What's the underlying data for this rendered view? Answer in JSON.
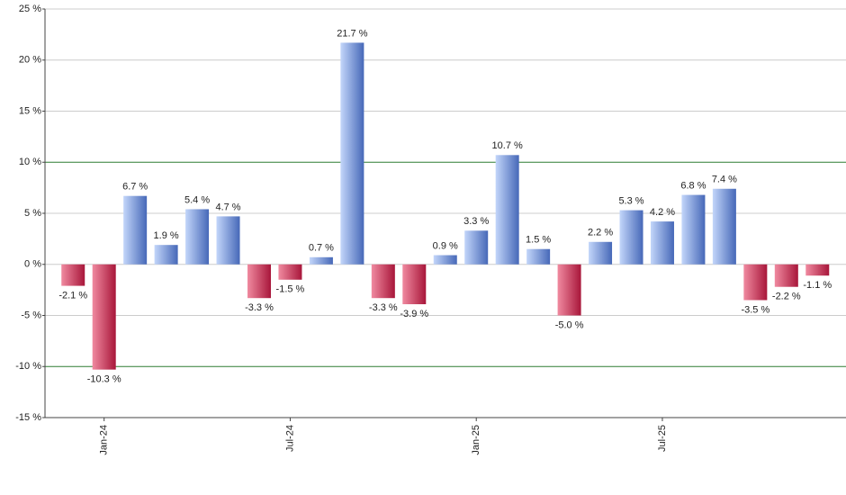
{
  "chart_data": {
    "type": "bar",
    "categories": [
      null,
      "Jan-24",
      null,
      null,
      null,
      null,
      null,
      "Jul-24",
      null,
      null,
      null,
      null,
      null,
      "Jan-25",
      null,
      null,
      null,
      null,
      null,
      "Jul-25",
      null,
      null,
      null,
      null,
      null
    ],
    "values": [
      -2.1,
      -10.3,
      6.7,
      1.9,
      5.4,
      4.7,
      -3.3,
      -1.5,
      0.7,
      21.7,
      -3.3,
      -3.9,
      0.9,
      3.3,
      10.7,
      1.5,
      -5.0,
      2.2,
      5.3,
      4.2,
      6.8,
      7.4,
      -3.5,
      -2.2,
      -1.1
    ],
    "value_labels": [
      "-2.1 %",
      "-10.3 %",
      "6.7 %",
      "1.9 %",
      "5.4 %",
      "4.7 %",
      "-3.3 %",
      "-1.5 %",
      "0.7 %",
      "21.7 %",
      "-3.3 %",
      "-3.9 %",
      "0.9 %",
      "3.3 %",
      "10.7 %",
      "1.5 %",
      "-5.0 %",
      "2.2 %",
      "5.3 %",
      "4.2 %",
      "6.8 %",
      "7.4 %",
      "-3.5 %",
      "-2.2 %",
      "-1.1 %"
    ],
    "positive_colors": [
      "#c3d6fa",
      "#4668b8"
    ],
    "negative_colors": [
      "#f08aa0",
      "#a8163a"
    ],
    "ylim": [
      -15,
      25
    ],
    "yticks": [
      {
        "value": -15,
        "label": "-15 %"
      },
      {
        "value": -10,
        "label": "-10 %"
      },
      {
        "value": -5,
        "label": "-5 %"
      },
      {
        "value": 0,
        "label": "0 %"
      },
      {
        "value": 5,
        "label": "5 %"
      },
      {
        "value": 10,
        "label": "10 %"
      },
      {
        "value": 15,
        "label": "15 %"
      },
      {
        "value": 20,
        "label": "20 %"
      },
      {
        "value": 25,
        "label": "25 %"
      }
    ],
    "reference_lines": [
      10,
      -10
    ],
    "reference_color": "#2e7d32",
    "grid": true
  }
}
